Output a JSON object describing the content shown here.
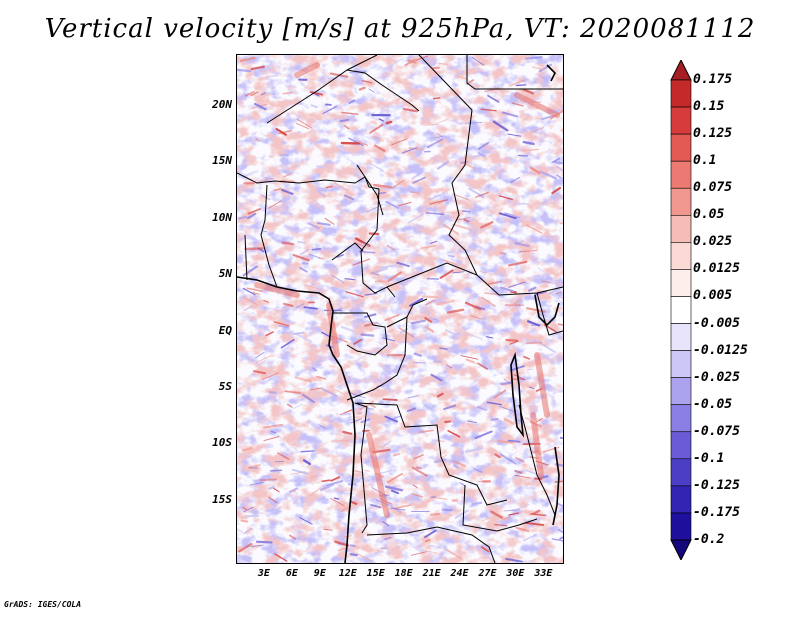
{
  "title": "Vertical velocity [m/s] at 925hPa, VT: 2020081112",
  "footer": "GrADS: IGES/COLA",
  "map": {
    "lat_range": [
      -20.5,
      24.5
    ],
    "lon_range": [
      0,
      35
    ],
    "lat_ticks": [
      {
        "value": 20,
        "label": "20N"
      },
      {
        "value": 15,
        "label": "15N"
      },
      {
        "value": 10,
        "label": "10N"
      },
      {
        "value": 5,
        "label": "5N"
      },
      {
        "value": 0,
        "label": "EQ"
      },
      {
        "value": -5,
        "label": "5S"
      },
      {
        "value": -10,
        "label": "10S"
      },
      {
        "value": -15,
        "label": "15S"
      }
    ],
    "lon_ticks": [
      {
        "value": 3,
        "label": "3E"
      },
      {
        "value": 6,
        "label": "6E"
      },
      {
        "value": 9,
        "label": "9E"
      },
      {
        "value": 12,
        "label": "12E"
      },
      {
        "value": 15,
        "label": "15E"
      },
      {
        "value": 18,
        "label": "18E"
      },
      {
        "value": 21,
        "label": "21E"
      },
      {
        "value": 24,
        "label": "24E"
      },
      {
        "value": 27,
        "label": "27E"
      },
      {
        "value": 30,
        "label": "30E"
      },
      {
        "value": 33,
        "label": "33E"
      }
    ]
  },
  "colorbar": {
    "levels": [
      "0.175",
      "0.15",
      "0.125",
      "0.1",
      "0.075",
      "0.05",
      "0.025",
      "0.0125",
      "0.005",
      "-0.005",
      "-0.0125",
      "-0.025",
      "-0.05",
      "-0.075",
      "-0.1",
      "-0.125",
      "-0.175",
      "-0.2"
    ],
    "colors": [
      "#a51e23",
      "#c42a2a",
      "#d83b3b",
      "#e35a55",
      "#ea7a72",
      "#f09890",
      "#f6bcb6",
      "#fbd9d5",
      "#fdeeec",
      "#ffffff",
      "#e6e3fb",
      "#cdc7f6",
      "#aca3ef",
      "#8a7fe4",
      "#6a5cd6",
      "#4d3ec6",
      "#3324b4",
      "#1e0f9c",
      "#14087c"
    ]
  }
}
